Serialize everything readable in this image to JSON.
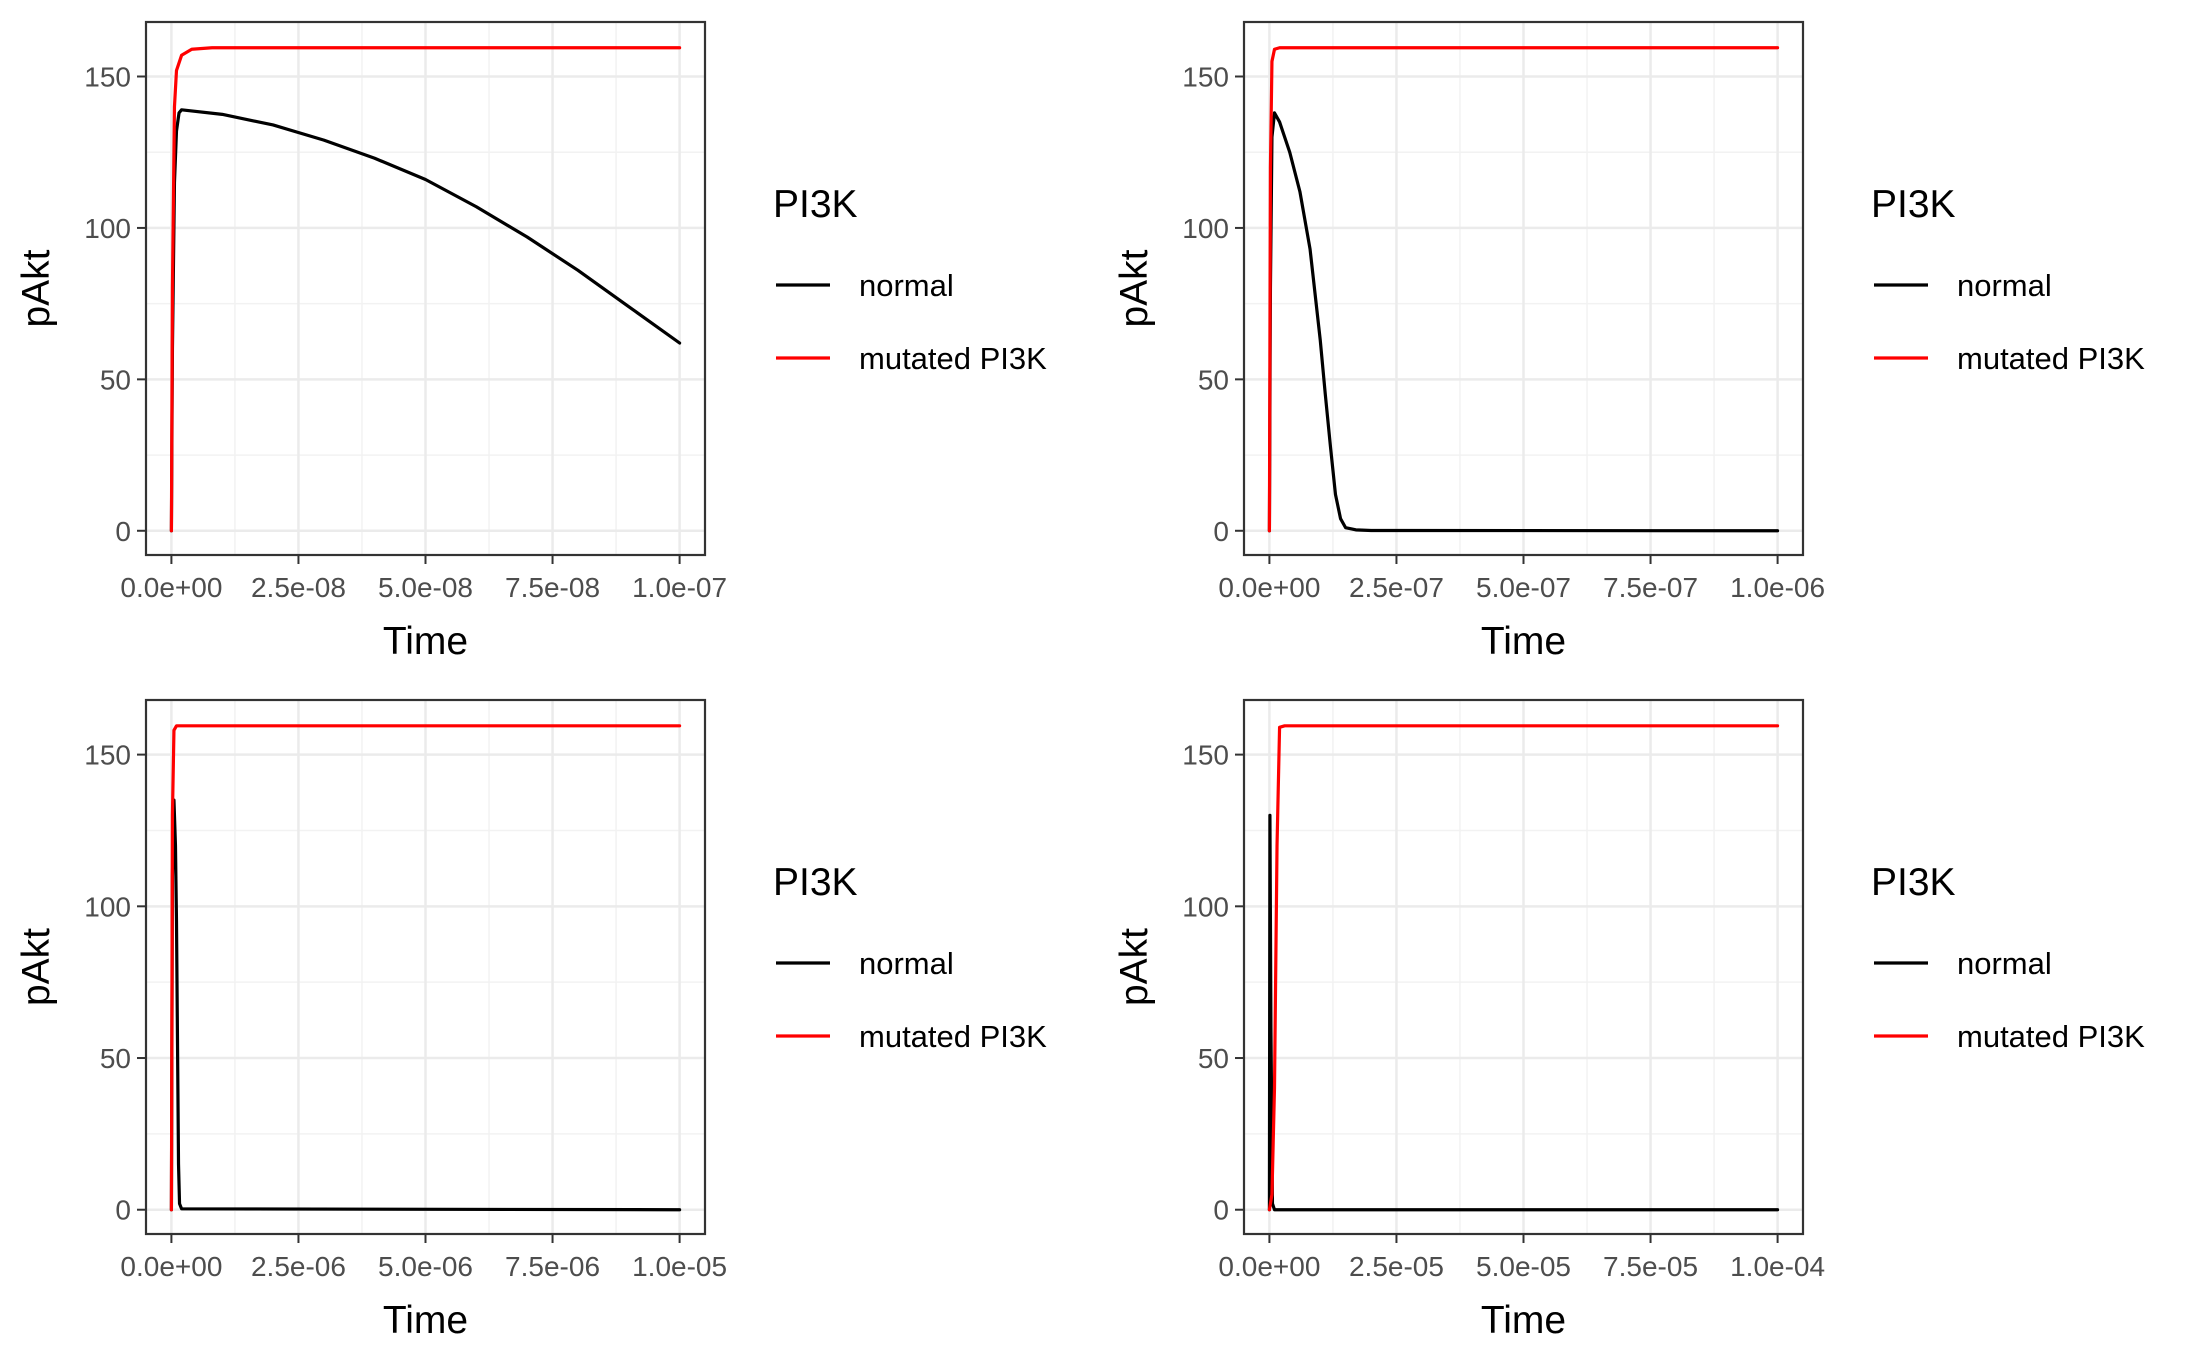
{
  "chart_data": [
    {
      "type": "line",
      "xlabel": "Time",
      "ylabel": "pAkt",
      "xlim": [
        0,
        1e-07
      ],
      "ylim": [
        0,
        160
      ],
      "x_ticks": [
        0,
        2.5e-08,
        5e-08,
        7.5e-08,
        1e-07
      ],
      "x_tick_labels": [
        "0.0e+00",
        "2.5e-08",
        "5.0e-08",
        "7.5e-08",
        "1.0e-07"
      ],
      "y_ticks": [
        0,
        50,
        100,
        150
      ],
      "y_tick_labels": [
        "0",
        "50",
        "100",
        "150"
      ],
      "grid": true,
      "legend": {
        "title": "PI3K",
        "position": "right",
        "entries": [
          "normal",
          "mutated PI3K"
        ]
      },
      "series": [
        {
          "name": "normal",
          "color": "#000000",
          "points": [
            [
              0,
              0
            ],
            [
              2e-10,
              60
            ],
            [
              6e-10,
              115
            ],
            [
              1e-09,
              132
            ],
            [
              1.5e-09,
              138
            ],
            [
              2e-09,
              139
            ],
            [
              1e-08,
              137.5
            ],
            [
              2e-08,
              134
            ],
            [
              3e-08,
              129
            ],
            [
              4e-08,
              123
            ],
            [
              5e-08,
              116
            ],
            [
              6e-08,
              107
            ],
            [
              7e-08,
              97
            ],
            [
              8e-08,
              86
            ],
            [
              9e-08,
              74
            ],
            [
              1e-07,
              62
            ]
          ]
        },
        {
          "name": "mutated PI3K",
          "color": "#ff0000",
          "points": [
            [
              0,
              0
            ],
            [
              2e-10,
              80
            ],
            [
              6e-10,
              140
            ],
            [
              1e-09,
              152
            ],
            [
              2e-09,
              157
            ],
            [
              4e-09,
              159
            ],
            [
              8e-09,
              159.5
            ],
            [
              1e-07,
              159.5
            ]
          ]
        }
      ]
    },
    {
      "type": "line",
      "xlabel": "Time",
      "ylabel": "pAkt",
      "xlim": [
        0,
        1e-06
      ],
      "ylim": [
        0,
        160
      ],
      "x_ticks": [
        0,
        2.5e-07,
        5e-07,
        7.5e-07,
        1e-06
      ],
      "x_tick_labels": [
        "0.0e+00",
        "2.5e-07",
        "5.0e-07",
        "7.5e-07",
        "1.0e-06"
      ],
      "y_ticks": [
        0,
        50,
        100,
        150
      ],
      "y_tick_labels": [
        "0",
        "50",
        "100",
        "150"
      ],
      "grid": true,
      "legend": {
        "title": "PI3K",
        "position": "right",
        "entries": [
          "normal",
          "mutated PI3K"
        ]
      },
      "series": [
        {
          "name": "normal",
          "color": "#000000",
          "points": [
            [
              0,
              0
            ],
            [
              2e-09,
              80
            ],
            [
              5e-09,
              130
            ],
            [
              1e-08,
              138
            ],
            [
              2e-08,
              135
            ],
            [
              4e-08,
              125
            ],
            [
              6e-08,
              112
            ],
            [
              8e-08,
              93
            ],
            [
              1e-07,
              63
            ],
            [
              1.1e-07,
              45
            ],
            [
              1.2e-07,
              28
            ],
            [
              1.3e-07,
              12
            ],
            [
              1.4e-07,
              4
            ],
            [
              1.5e-07,
              1
            ],
            [
              1.7e-07,
              0.3
            ],
            [
              2e-07,
              0.1
            ],
            [
              1e-06,
              0
            ]
          ]
        },
        {
          "name": "mutated PI3K",
          "color": "#ff0000",
          "points": [
            [
              0,
              0
            ],
            [
              2e-09,
              120
            ],
            [
              5e-09,
              155
            ],
            [
              1e-08,
              159
            ],
            [
              2e-08,
              159.5
            ],
            [
              1e-06,
              159.5
            ]
          ]
        }
      ]
    },
    {
      "type": "line",
      "xlabel": "Time",
      "ylabel": "pAkt",
      "xlim": [
        0,
        1e-05
      ],
      "ylim": [
        0,
        160
      ],
      "x_ticks": [
        0,
        2.5e-06,
        5e-06,
        7.5e-06,
        1e-05
      ],
      "x_tick_labels": [
        "0.0e+00",
        "2.5e-06",
        "5.0e-06",
        "7.5e-06",
        "1.0e-05"
      ],
      "y_ticks": [
        0,
        50,
        100,
        150
      ],
      "y_tick_labels": [
        "0",
        "50",
        "100",
        "150"
      ],
      "grid": true,
      "legend": {
        "title": "PI3K",
        "position": "right",
        "entries": [
          "normal",
          "mutated PI3K"
        ]
      },
      "series": [
        {
          "name": "normal",
          "color": "#000000",
          "points": [
            [
              0,
              0
            ],
            [
              2e-08,
              110
            ],
            [
              5e-08,
              135
            ],
            [
              8e-08,
              120
            ],
            [
              1e-07,
              95
            ],
            [
              1.2e-07,
              55
            ],
            [
              1.4e-07,
              15
            ],
            [
              1.6e-07,
              2
            ],
            [
              2e-07,
              0.3
            ],
            [
              1e-05,
              0
            ]
          ]
        },
        {
          "name": "mutated PI3K",
          "color": "#ff0000",
          "points": [
            [
              0,
              0
            ],
            [
              2e-08,
              130
            ],
            [
              5e-08,
              158
            ],
            [
              1e-07,
              159.5
            ],
            [
              1e-05,
              159.5
            ]
          ]
        }
      ]
    },
    {
      "type": "line",
      "xlabel": "Time",
      "ylabel": "pAkt",
      "xlim": [
        0,
        0.0001
      ],
      "ylim": [
        0,
        160
      ],
      "x_ticks": [
        0,
        2.5e-05,
        5e-05,
        7.5e-05,
        0.0001
      ],
      "x_tick_labels": [
        "0.0e+00",
        "2.5e-05",
        "5.0e-05",
        "7.5e-05",
        "1.0e-04"
      ],
      "y_ticks": [
        0,
        50,
        100,
        150
      ],
      "y_tick_labels": [
        "0",
        "50",
        "100",
        "150"
      ],
      "grid": true,
      "legend": {
        "title": "PI3K",
        "position": "right",
        "entries": [
          "normal",
          "mutated PI3K"
        ]
      },
      "series": [
        {
          "name": "normal",
          "color": "#000000",
          "points": [
            [
              0,
              0
            ],
            [
              1e-07,
              130
            ],
            [
              3e-07,
              60
            ],
            [
              6e-07,
              2
            ],
            [
              1e-06,
              0
            ],
            [
              0.0001,
              0
            ]
          ]
        },
        {
          "name": "mutated PI3K",
          "color": "#ff0000",
          "points": [
            [
              0,
              0
            ],
            [
              5e-07,
              5
            ],
            [
              1e-06,
              40
            ],
            [
              1.5e-06,
              120
            ],
            [
              2e-06,
              159
            ],
            [
              3e-06,
              159.5
            ],
            [
              0.0001,
              159.5
            ]
          ]
        }
      ]
    }
  ]
}
